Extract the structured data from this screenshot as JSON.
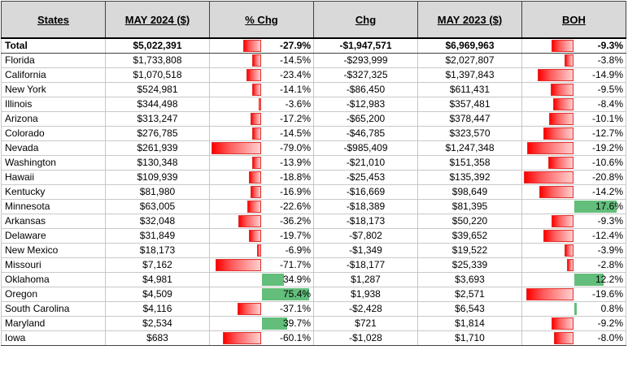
{
  "headers": {
    "states": "States",
    "may2024": "MAY 2024 ($)",
    "pct_chg": "% Chg",
    "chg": "Chg",
    "may2023": "MAY 2023 ($)",
    "boh": "BOH"
  },
  "colors": {
    "negative": "#ff0000",
    "positive": "#63be7b"
  },
  "rows": [
    {
      "state": "Total",
      "may2024": "$5,022,391",
      "pct": "-27.9%",
      "pct_v": -27.9,
      "chg": "-$1,947,571",
      "may2023": "$6,969,963",
      "boh": "-9.3%",
      "boh_v": -9.3
    },
    {
      "state": "Florida",
      "may2024": "$1,733,808",
      "pct": "-14.5%",
      "pct_v": -14.5,
      "chg": "-$293,999",
      "may2023": "$2,027,807",
      "boh": "-3.8%",
      "boh_v": -3.8
    },
    {
      "state": "California",
      "may2024": "$1,070,518",
      "pct": "-23.4%",
      "pct_v": -23.4,
      "chg": "-$327,325",
      "may2023": "$1,397,843",
      "boh": "-14.9%",
      "boh_v": -14.9
    },
    {
      "state": "New York",
      "may2024": "$524,981",
      "pct": "-14.1%",
      "pct_v": -14.1,
      "chg": "-$86,450",
      "may2023": "$611,431",
      "boh": "-9.5%",
      "boh_v": -9.5
    },
    {
      "state": "Illinois",
      "may2024": "$344,498",
      "pct": "-3.6%",
      "pct_v": -3.6,
      "chg": "-$12,983",
      "may2023": "$357,481",
      "boh": "-8.4%",
      "boh_v": -8.4
    },
    {
      "state": "Arizona",
      "may2024": "$313,247",
      "pct": "-17.2%",
      "pct_v": -17.2,
      "chg": "-$65,200",
      "may2023": "$378,447",
      "boh": "-10.1%",
      "boh_v": -10.1
    },
    {
      "state": "Colorado",
      "may2024": "$276,785",
      "pct": "-14.5%",
      "pct_v": -14.5,
      "chg": "-$46,785",
      "may2023": "$323,570",
      "boh": "-12.7%",
      "boh_v": -12.7
    },
    {
      "state": "Nevada",
      "may2024": "$261,939",
      "pct": "-79.0%",
      "pct_v": -79.0,
      "chg": "-$985,409",
      "may2023": "$1,247,348",
      "boh": "-19.2%",
      "boh_v": -19.2
    },
    {
      "state": "Washington",
      "may2024": "$130,348",
      "pct": "-13.9%",
      "pct_v": -13.9,
      "chg": "-$21,010",
      "may2023": "$151,358",
      "boh": "-10.6%",
      "boh_v": -10.6
    },
    {
      "state": "Hawaii",
      "may2024": "$109,939",
      "pct": "-18.8%",
      "pct_v": -18.8,
      "chg": "-$25,453",
      "may2023": "$135,392",
      "boh": "-20.8%",
      "boh_v": -20.8
    },
    {
      "state": "Kentucky",
      "may2024": "$81,980",
      "pct": "-16.9%",
      "pct_v": -16.9,
      "chg": "-$16,669",
      "may2023": "$98,649",
      "boh": "-14.2%",
      "boh_v": -14.2
    },
    {
      "state": "Minnesota",
      "may2024": "$63,005",
      "pct": "-22.6%",
      "pct_v": -22.6,
      "chg": "-$18,389",
      "may2023": "$81,395",
      "boh": "17.6%",
      "boh_v": 17.6
    },
    {
      "state": "Arkansas",
      "may2024": "$32,048",
      "pct": "-36.2%",
      "pct_v": -36.2,
      "chg": "-$18,173",
      "may2023": "$50,220",
      "boh": "-9.3%",
      "boh_v": -9.3
    },
    {
      "state": "Delaware",
      "may2024": "$31,849",
      "pct": "-19.7%",
      "pct_v": -19.7,
      "chg": "-$7,802",
      "may2023": "$39,652",
      "boh": "-12.4%",
      "boh_v": -12.4
    },
    {
      "state": "New Mexico",
      "may2024": "$18,173",
      "pct": "-6.9%",
      "pct_v": -6.9,
      "chg": "-$1,349",
      "may2023": "$19,522",
      "boh": "-3.9%",
      "boh_v": -3.9
    },
    {
      "state": "Missouri",
      "may2024": "$7,162",
      "pct": "-71.7%",
      "pct_v": -71.7,
      "chg": "-$18,177",
      "may2023": "$25,339",
      "boh": "-2.8%",
      "boh_v": -2.8
    },
    {
      "state": "Oklahoma",
      "may2024": "$4,981",
      "pct": "34.9%",
      "pct_v": 34.9,
      "chg": "$1,287",
      "may2023": "$3,693",
      "boh": "12.2%",
      "boh_v": 12.2
    },
    {
      "state": "Oregon",
      "may2024": "$4,509",
      "pct": "75.4%",
      "pct_v": 75.4,
      "chg": "$1,938",
      "may2023": "$2,571",
      "boh": "-19.6%",
      "boh_v": -19.6
    },
    {
      "state": "South Carolina",
      "may2024": "$4,116",
      "pct": "-37.1%",
      "pct_v": -37.1,
      "chg": "-$2,428",
      "may2023": "$6,543",
      "boh": "0.8%",
      "boh_v": 0.8
    },
    {
      "state": "Maryland",
      "may2024": "$2,534",
      "pct": "39.7%",
      "pct_v": 39.7,
      "chg": "$721",
      "may2023": "$1,814",
      "boh": "-9.2%",
      "boh_v": -9.2
    },
    {
      "state": "Iowa",
      "may2024": "$683",
      "pct": "-60.1%",
      "pct_v": -60.1,
      "chg": "-$1,028",
      "may2023": "$1,710",
      "boh": "-8.0%",
      "boh_v": -8.0
    }
  ]
}
